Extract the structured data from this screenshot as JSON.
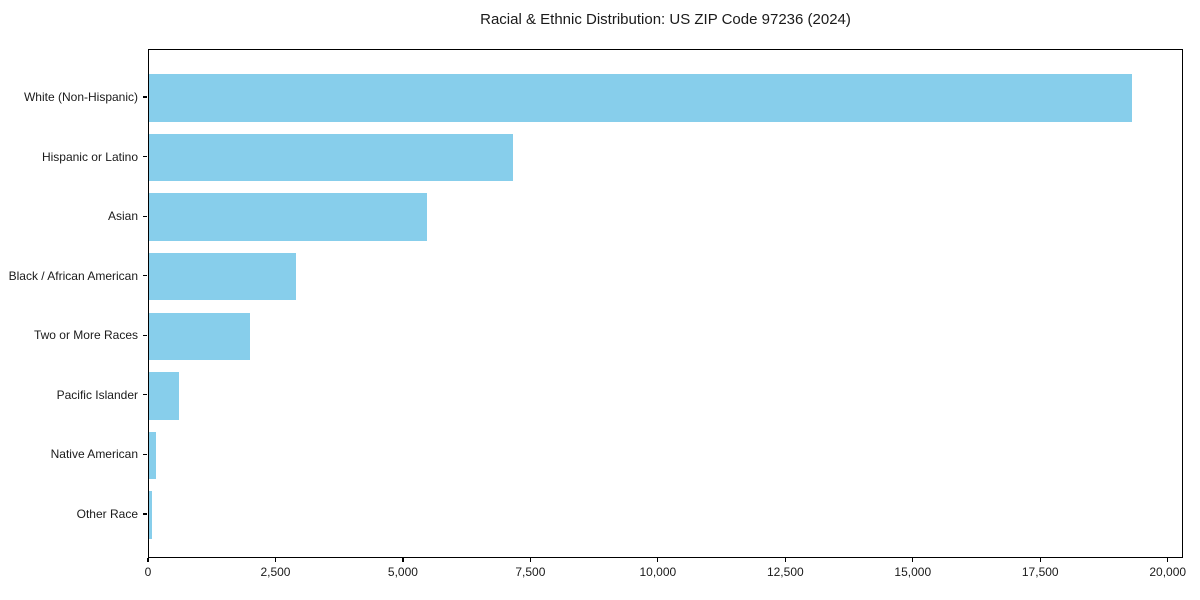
{
  "chart_data": {
    "type": "bar",
    "orientation": "horizontal",
    "title": "Racial & Ethnic Distribution: US ZIP Code 97236 (2024)",
    "categories": [
      "White (Non-Hispanic)",
      "Hispanic or Latino",
      "Asian",
      "Black / African American",
      "Two or More Races",
      "Pacific Islander",
      "Native American",
      "Other Race"
    ],
    "values": [
      19310,
      7160,
      5460,
      2890,
      1975,
      590,
      145,
      60
    ],
    "xlabel": "",
    "ylabel": "",
    "xlim": [
      0,
      20300
    ],
    "x_ticks": [
      0,
      2500,
      5000,
      7500,
      10000,
      12500,
      15000,
      17500,
      20000
    ],
    "grid": false,
    "legend": false,
    "bar_color": "#87CEEB",
    "axis_color": "#000000",
    "text_color": "#1a1a1a"
  }
}
